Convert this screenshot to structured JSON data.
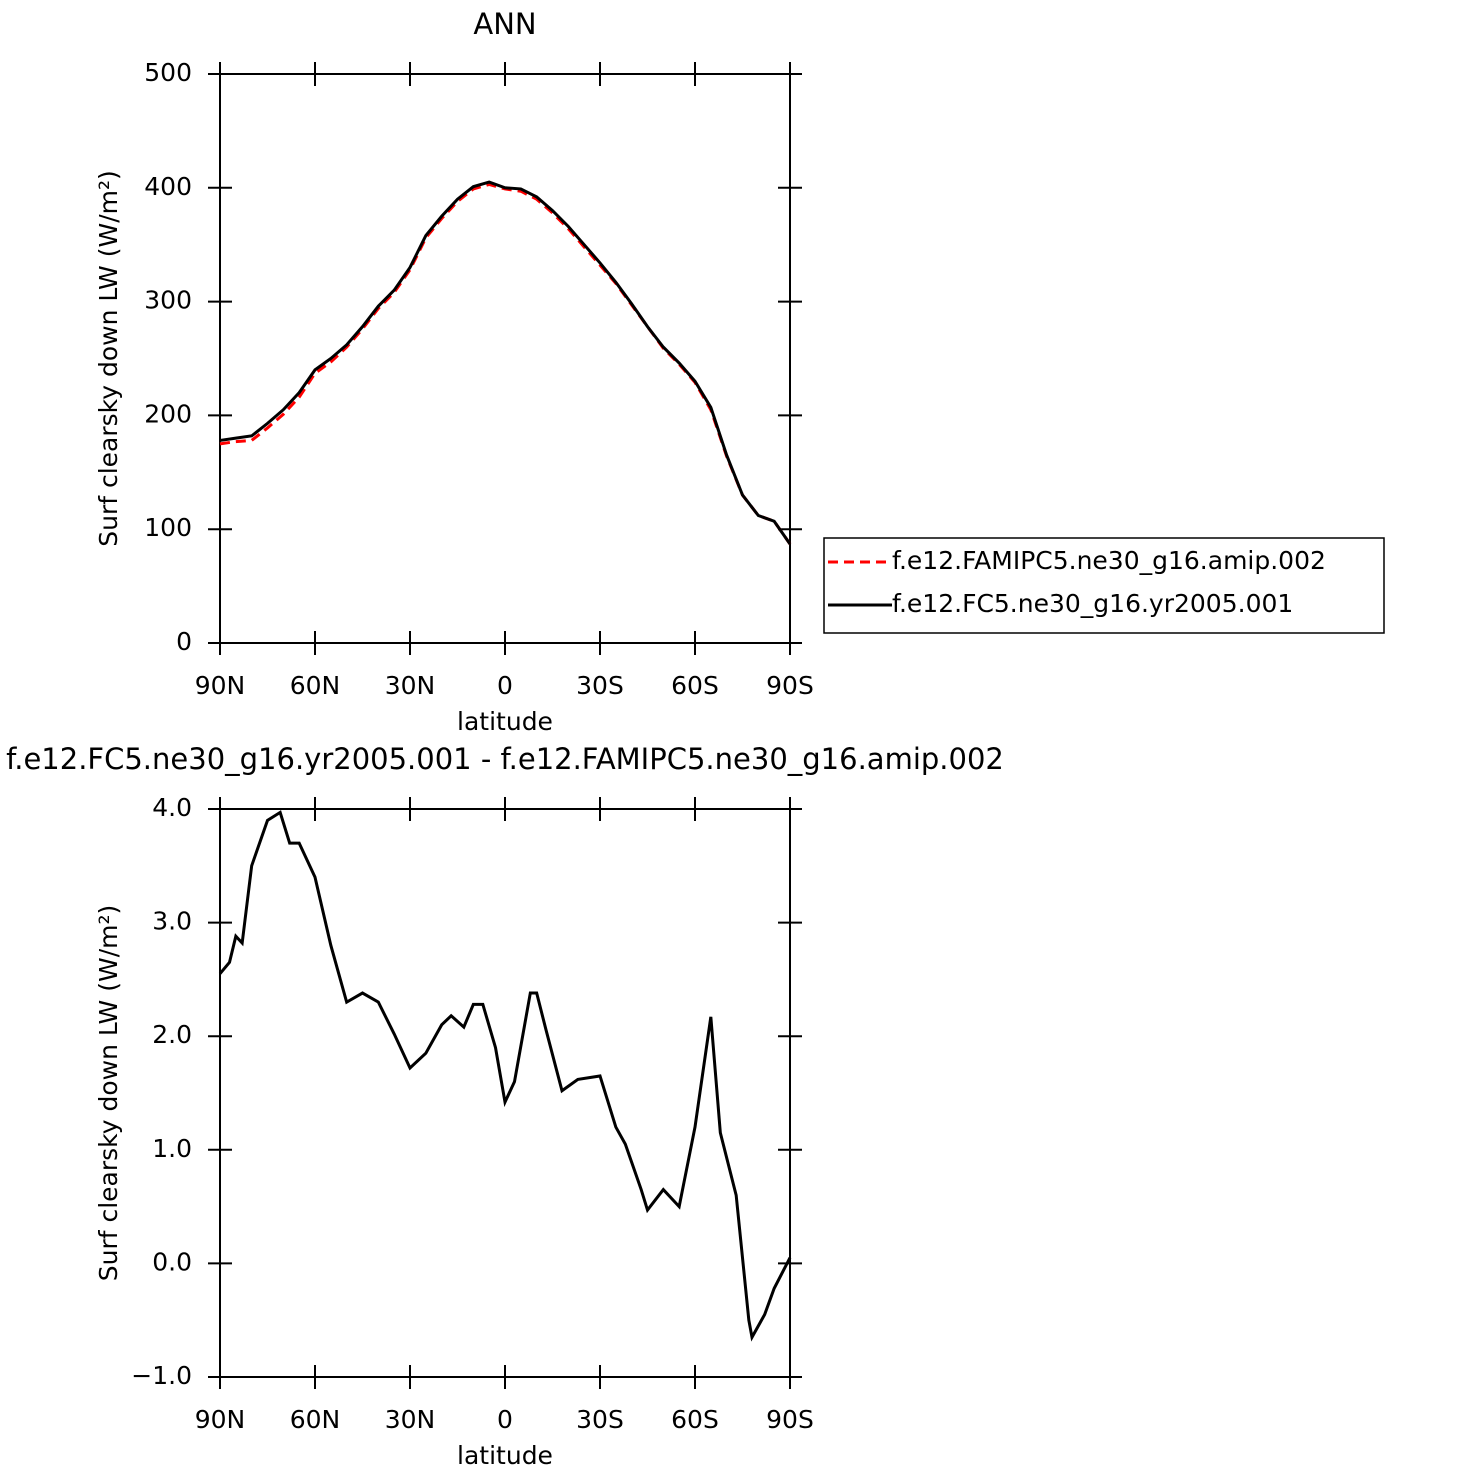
{
  "chart_data": [
    {
      "type": "line",
      "title": "ANN",
      "xlabel": "latitude",
      "ylabel": "Surf clearsky down LW (W/m²)",
      "x": [
        90,
        85,
        80,
        75,
        70,
        65,
        60,
        55,
        50,
        45,
        40,
        35,
        30,
        25,
        20,
        15,
        10,
        5,
        0,
        -5,
        -10,
        -15,
        -20,
        -25,
        -30,
        -35,
        -40,
        -45,
        -50,
        -55,
        -60,
        -65,
        -70,
        -75,
        -80,
        -85,
        -90
      ],
      "series": [
        {
          "name": "f.e12.FAMIPC5.ne30_g16.amip.002",
          "color": "#ff0000",
          "style": "dashed",
          "values": [
            175,
            177,
            178,
            189,
            201,
            216,
            237,
            247,
            260,
            276,
            294,
            308,
            328,
            356,
            373,
            388,
            399,
            403,
            399,
            397,
            390,
            378,
            364,
            348,
            332,
            316,
            297,
            278,
            259,
            245,
            229,
            205,
            164,
            130,
            112,
            107,
            87
          ]
        },
        {
          "name": "f.e12.FC5.ne30_g16.yr2005.001",
          "color": "#000000",
          "style": "solid",
          "values": [
            178,
            180,
            182,
            193,
            205,
            220,
            240,
            250,
            262,
            278,
            296,
            310,
            330,
            358,
            375,
            390,
            401,
            405,
            400,
            399,
            392,
            380,
            366,
            350,
            334,
            317,
            298,
            278,
            260,
            246,
            230,
            207,
            165,
            130,
            112,
            107,
            87
          ]
        }
      ],
      "xlim": [
        90,
        -90
      ],
      "xticks": [
        {
          "value": 90,
          "label": "90N"
        },
        {
          "value": 60,
          "label": "60N"
        },
        {
          "value": 30,
          "label": "30N"
        },
        0,
        {
          "value": -30,
          "label": "30S"
        },
        {
          "value": -60,
          "label": "60S"
        },
        {
          "value": -90,
          "label": "90S"
        }
      ],
      "ylim": [
        0,
        500
      ],
      "yticks": [
        0,
        100,
        200,
        300,
        400,
        500
      ],
      "legend": "right"
    },
    {
      "type": "line",
      "title": "f.e12.FC5.ne30_g16.yr2005.001 - f.e12.FAMIPC5.ne30_g16.amip.002",
      "xlabel": "latitude",
      "ylabel": "Surf clearsky down LW (W/m²)",
      "x": [
        90,
        87,
        85,
        83,
        80,
        75,
        71,
        68,
        65,
        60,
        55,
        50,
        45,
        40,
        35,
        30,
        25,
        20,
        17,
        13,
        10,
        7,
        3,
        0,
        -3,
        -8,
        -10,
        -13,
        -18,
        -23,
        -30,
        -35,
        -38,
        -43,
        -45,
        -50,
        -55,
        -60,
        -65,
        -68,
        -73,
        -77,
        -78,
        -82,
        -85,
        -90
      ],
      "series": [
        {
          "name": "",
          "color": "#000000",
          "style": "solid",
          "values": [
            2.55,
            2.65,
            2.88,
            2.82,
            3.5,
            3.9,
            3.97,
            3.7,
            3.7,
            3.4,
            2.8,
            2.3,
            2.38,
            2.3,
            2.02,
            1.72,
            1.85,
            2.1,
            2.18,
            2.08,
            2.28,
            2.28,
            1.9,
            1.42,
            1.6,
            2.38,
            2.38,
            2.05,
            1.52,
            1.62,
            1.65,
            1.2,
            1.05,
            0.65,
            0.47,
            0.65,
            0.5,
            1.2,
            2.17,
            1.15,
            0.6,
            -0.5,
            -0.65,
            -0.45,
            -0.22,
            0.05
          ]
        }
      ],
      "xlim": [
        90,
        -90
      ],
      "xticks": [
        {
          "value": 90,
          "label": "90N"
        },
        {
          "value": 60,
          "label": "60N"
        },
        {
          "value": 30,
          "label": "30N"
        },
        0,
        {
          "value": -30,
          "label": "30S"
        },
        {
          "value": -60,
          "label": "60S"
        },
        {
          "value": -90,
          "label": "90S"
        }
      ],
      "ylim": [
        -1,
        4
      ],
      "yticks": [
        {
          "value": -1,
          "label": "−1.0"
        },
        {
          "value": 0,
          "label": "0.0"
        },
        {
          "value": 1,
          "label": "1.0"
        },
        {
          "value": 2,
          "label": "2.0"
        },
        {
          "value": 3,
          "label": "3.0"
        },
        {
          "value": 4,
          "label": "4.0"
        }
      ]
    }
  ]
}
